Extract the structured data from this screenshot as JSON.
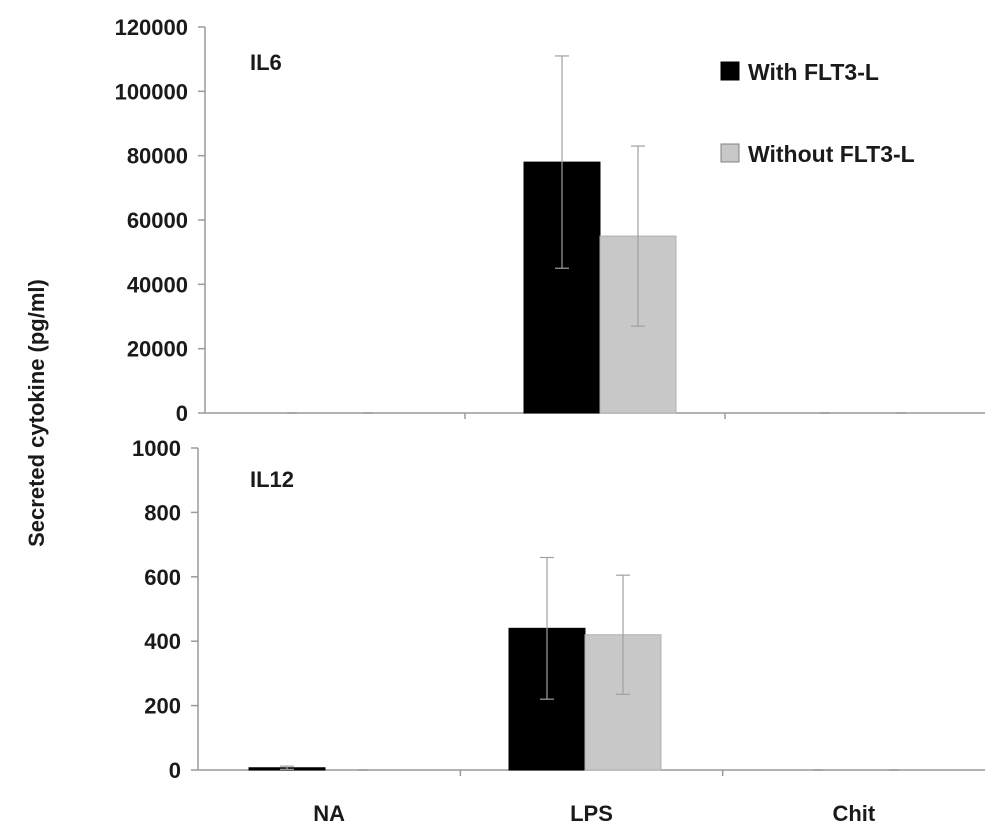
{
  "chart_data": [
    {
      "type": "bar",
      "title": "IL6",
      "categories": [
        "NA",
        "LPS",
        "Chit"
      ],
      "ylim": [
        0,
        120000
      ],
      "yticks": [
        0,
        20000,
        40000,
        60000,
        80000,
        100000,
        120000
      ],
      "grid": false,
      "series": [
        {
          "name": "With FLT3-L",
          "color": "#000000",
          "values": [
            0,
            78000,
            0
          ],
          "errors": [
            0,
            33000,
            0
          ]
        },
        {
          "name": "Without FLT3-L",
          "color": "#c8c8c8",
          "values": [
            0,
            55000,
            0
          ],
          "errors": [
            0,
            28000,
            0
          ]
        }
      ]
    },
    {
      "type": "bar",
      "title": "IL12",
      "categories": [
        "NA",
        "LPS",
        "Chit"
      ],
      "ylim": [
        0,
        1000
      ],
      "yticks": [
        0,
        200,
        400,
        600,
        800,
        1000
      ],
      "grid": false,
      "series": [
        {
          "name": "With FLT3-L",
          "color": "#000000",
          "values": [
            7,
            440,
            0
          ],
          "errors": [
            5,
            220,
            0
          ]
        },
        {
          "name": "Without FLT3-L",
          "color": "#c8c8c8",
          "values": [
            0,
            420,
            0
          ],
          "errors": [
            0,
            185,
            0
          ]
        }
      ]
    }
  ],
  "ylabel": "Secreted cytokine (pg/ml)",
  "legend": {
    "position": "top-right",
    "items": [
      {
        "label": "With FLT3-L",
        "color": "#000000"
      },
      {
        "label": "Without FLT3-L",
        "color": "#c8c8c8"
      }
    ]
  }
}
